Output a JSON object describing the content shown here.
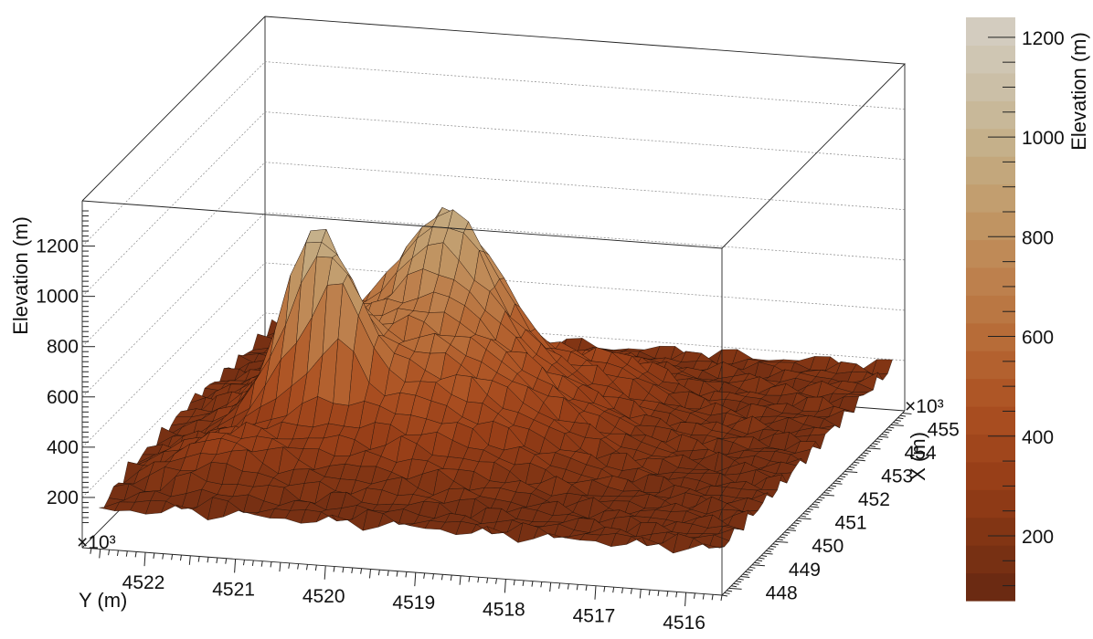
{
  "chart_data": {
    "type": "surface",
    "z_label": "Elevation (m)",
    "y_label": "Y (m)",
    "x_label": "X (m)",
    "colorbar_label": "Elevation (m)",
    "x_exponent": "×10³",
    "y_exponent": "×10³",
    "z_ticks": [
      "200",
      "400",
      "600",
      "800",
      "1000",
      "1200"
    ],
    "y_ticks": [
      "4522",
      "4521",
      "4520",
      "4519",
      "4518",
      "4517",
      "4516"
    ],
    "x_ticks": [
      "448",
      "449",
      "450",
      "451",
      "452",
      "453",
      "454",
      "455"
    ],
    "colorbar_ticks": [
      "200",
      "400",
      "600",
      "800",
      "1000",
      "1200"
    ],
    "x_range": [
      447.7,
      455.6
    ],
    "y_range": [
      4515.6,
      4522.7
    ],
    "z_range": [
      0,
      1380
    ],
    "colorbar_range": [
      70,
      1240
    ],
    "grid": "on",
    "colormap": {
      "low": "#6a2812",
      "mid": "#a8491d",
      "high": "#d2c8b6",
      "band_colors": [
        "#6b2a12",
        "#773013",
        "#823514",
        "#8e3a16",
        "#983f18",
        "#a0461c",
        "#a84d20",
        "#ae5626",
        "#b3612f",
        "#b76c38",
        "#ba7743",
        "#bd804d",
        "#bf8a57",
        "#c09462",
        "#c29e6f",
        "#c3a77c",
        "#c5b08a",
        "#c8b899",
        "#cbbfa7",
        "#cfc6b3",
        "#d3ccbf"
      ]
    },
    "series": [
      {
        "name": "",
        "type": "surface",
        "peaks": [
          {
            "x": 452.7,
            "y": 4519.9,
            "z": 1245
          },
          {
            "x": 450.9,
            "y": 4521.0,
            "z": 1170
          },
          {
            "x": 450.6,
            "y": 4520.6,
            "z": 1120
          }
        ]
      }
    ]
  }
}
